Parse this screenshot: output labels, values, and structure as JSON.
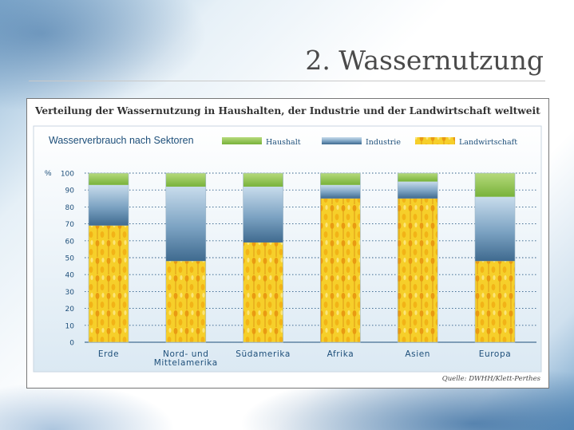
{
  "slide": {
    "title": "2. Wassernutzung"
  },
  "figure": {
    "title": "Verteilung der Wassernutzung in Haushalten, der Industrie und der Landwirtschaft weltweit",
    "source": "Quelle: DWHH/Klett-Perthes"
  },
  "chart_data": {
    "type": "bar",
    "stacked": true,
    "title": "Wasserverbrauch nach Sektoren",
    "ylabel": "%",
    "ylim": [
      0,
      100
    ],
    "yticks": [
      0,
      10,
      20,
      30,
      40,
      50,
      60,
      70,
      80,
      90,
      100
    ],
    "grid": "dotted horizontal",
    "legend_position": "top",
    "categories": [
      "Erde",
      "Nord- und Mittelamerika",
      "Südamerika",
      "Afrika",
      "Asien",
      "Europa"
    ],
    "category_lines": [
      [
        "Erde"
      ],
      [
        "Nord- und",
        "Mittelamerika"
      ],
      [
        "Südamerika"
      ],
      [
        "Afrika"
      ],
      [
        "Asien"
      ],
      [
        "Europa"
      ]
    ],
    "series": [
      {
        "name": "Landwirtschaft",
        "values": [
          69,
          48,
          59,
          85,
          85,
          48
        ],
        "color": "#f2c21b"
      },
      {
        "name": "Industrie",
        "values": [
          24,
          44,
          33,
          8,
          10,
          38
        ],
        "color": "#5c86a8"
      },
      {
        "name": "Haushalt",
        "values": [
          7,
          8,
          8,
          7,
          5,
          14
        ],
        "color": "#8fc24a"
      }
    ],
    "legend_order": [
      "Haushalt",
      "Industrie",
      "Landwirtschaft"
    ]
  }
}
